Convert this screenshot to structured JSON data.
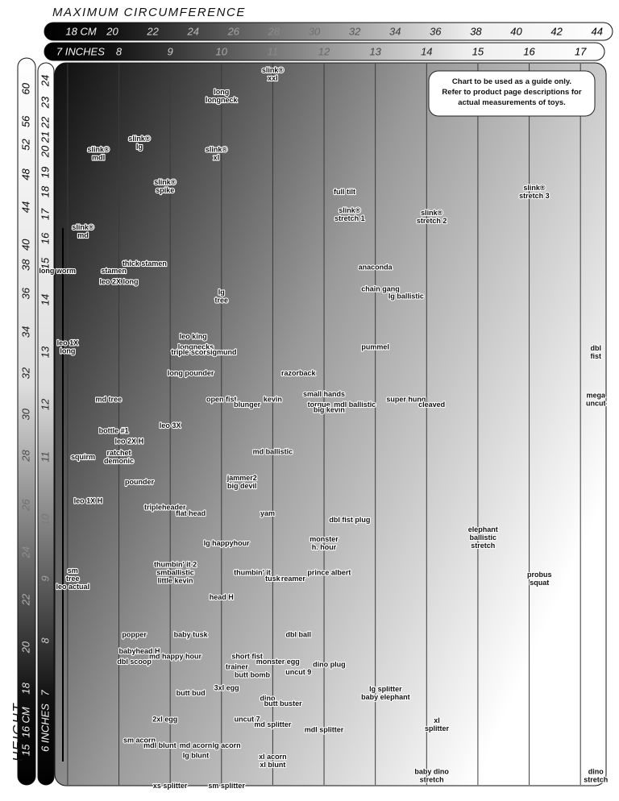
{
  "chart_data": {
    "type": "label-scatter",
    "title": "MAXIMUM CIRCUMFERENCE",
    "ylabel": "HEIGHT",
    "note": [
      "Chart to be used as a guide only.",
      "Refer to product page descriptions for",
      "actual measurements of toys."
    ],
    "xlim": [
      6.75,
      17.5
    ],
    "xticks": [
      {
        "value": 7,
        "label": "7 INCHES"
      },
      8,
      9,
      10,
      11,
      12,
      13,
      14,
      15,
      16,
      17
    ],
    "x2ticks": [
      {
        "value": 18,
        "label": "18 CM"
      },
      20,
      22,
      24,
      26,
      28,
      30,
      32,
      34,
      36,
      38,
      40,
      42,
      44
    ],
    "ylim": [
      5.2,
      24.8
    ],
    "yticks": [
      {
        "value": 6,
        "label": "6 INCHES"
      },
      7,
      8,
      9,
      10,
      11,
      12,
      13,
      14,
      15,
      16,
      17,
      18,
      19,
      20,
      21,
      22,
      23,
      24
    ],
    "y2ticks": [
      15,
      {
        "value": 16,
        "label": "16 CM"
      },
      18,
      20,
      22,
      24,
      26,
      28,
      30,
      32,
      34,
      36,
      38,
      40,
      44,
      48,
      52,
      56,
      60
    ],
    "grid": true,
    "points": [
      {
        "label": [
          "slink®",
          "xxl"
        ],
        "x": 11.0,
        "y": 24.3
      },
      {
        "label": [
          "long",
          "longneck"
        ],
        "x": 10.0,
        "y": 23.3
      },
      {
        "label": [
          "slink®",
          "lg"
        ],
        "x": 8.4,
        "y": 20.6
      },
      {
        "label": [
          "slink®",
          "mdl"
        ],
        "x": 7.6,
        "y": 19.9
      },
      {
        "label": [
          "slink®",
          "xl"
        ],
        "x": 9.9,
        "y": 19.9
      },
      {
        "label": [
          "slink®",
          "spike"
        ],
        "x": 8.9,
        "y": 18.3
      },
      {
        "label": [
          "full tilt"
        ],
        "x": 12.4,
        "y": 18.0
      },
      {
        "label": [
          "slink®",
          "stretch 1"
        ],
        "x": 12.5,
        "y": 17.0
      },
      {
        "label": [
          "slink®",
          "stretch 2"
        ],
        "x": 14.1,
        "y": 16.9
      },
      {
        "label": [
          "slink®",
          "stretch 3"
        ],
        "x": 16.1,
        "y": 18.0
      },
      {
        "label": [
          "slink®",
          "md"
        ],
        "x": 7.3,
        "y": 16.3
      },
      {
        "label": [
          "thick stamen"
        ],
        "x": 8.5,
        "y": 15.0
      },
      {
        "label": [
          "long worm"
        ],
        "x": 6.8,
        "y": 14.8
      },
      {
        "label": [
          "stamen"
        ],
        "x": 7.9,
        "y": 14.8
      },
      {
        "label": [
          "leo 2X long"
        ],
        "x": 8.0,
        "y": 14.5
      },
      {
        "label": [
          "anaconda"
        ],
        "x": 13.0,
        "y": 14.9
      },
      {
        "label": [
          "chain gang"
        ],
        "x": 13.1,
        "y": 14.3
      },
      {
        "label": [
          "lg ballistic"
        ],
        "x": 13.6,
        "y": 14.1
      },
      {
        "label": [
          "lg",
          "tree"
        ],
        "x": 10.0,
        "y": 14.1
      },
      {
        "label": [
          "leo 1X",
          "long"
        ],
        "x": 7.0,
        "y": 13.1
      },
      {
        "label": [
          "leo king"
        ],
        "x": 9.45,
        "y": 13.3
      },
      {
        "label": [
          "longnecks"
        ],
        "x": 9.5,
        "y": 13.1
      },
      {
        "label": [
          "triple score"
        ],
        "x": 9.4,
        "y": 13.0
      },
      {
        "label": [
          "sigmund"
        ],
        "x": 10.0,
        "y": 13.0
      },
      {
        "label": [
          "pummel"
        ],
        "x": 13.0,
        "y": 13.1
      },
      {
        "label": [
          "dbl",
          "fist"
        ],
        "x": 17.3,
        "y": 13.0
      },
      {
        "label": [
          "long pounder"
        ],
        "x": 9.4,
        "y": 12.6
      },
      {
        "label": [
          "razorback"
        ],
        "x": 11.5,
        "y": 12.6
      },
      {
        "label": [
          "md tree"
        ],
        "x": 7.8,
        "y": 12.1
      },
      {
        "label": [
          "open fist"
        ],
        "x": 10.0,
        "y": 12.1
      },
      {
        "label": [
          "blunger"
        ],
        "x": 10.5,
        "y": 12.0
      },
      {
        "label": [
          "kevin"
        ],
        "x": 11.0,
        "y": 12.1
      },
      {
        "label": [
          "small hands"
        ],
        "x": 12.0,
        "y": 12.2
      },
      {
        "label": [
          "torque"
        ],
        "x": 11.9,
        "y": 12.0
      },
      {
        "label": [
          "big kevin"
        ],
        "x": 12.1,
        "y": 11.9
      },
      {
        "label": [
          "mdl ballistic"
        ],
        "x": 12.6,
        "y": 12.0
      },
      {
        "label": [
          "super hung"
        ],
        "x": 13.6,
        "y": 12.1
      },
      {
        "label": [
          "cleaved"
        ],
        "x": 14.1,
        "y": 12.0
      },
      {
        "label": [
          "mega",
          "uncut"
        ],
        "x": 17.3,
        "y": 12.1
      },
      {
        "label": [
          "leo 3X"
        ],
        "x": 9.0,
        "y": 11.6
      },
      {
        "label": [
          "bottle #1"
        ],
        "x": 7.9,
        "y": 11.5
      },
      {
        "label": [
          "leo 2X H"
        ],
        "x": 8.2,
        "y": 11.3
      },
      {
        "label": [
          "md ballistic"
        ],
        "x": 11.0,
        "y": 11.1
      },
      {
        "label": [
          "squirm"
        ],
        "x": 7.3,
        "y": 11.0
      },
      {
        "label": [
          "ratchet",
          "demonic"
        ],
        "x": 8.0,
        "y": 11.0
      },
      {
        "label": [
          "pounder"
        ],
        "x": 8.4,
        "y": 10.6
      },
      {
        "label": [
          "jammer2",
          "big devil"
        ],
        "x": 10.4,
        "y": 10.6
      },
      {
        "label": [
          "leo 1X H"
        ],
        "x": 7.4,
        "y": 10.3
      },
      {
        "label": [
          "tripleheader"
        ],
        "x": 8.9,
        "y": 10.2
      },
      {
        "label": [
          "flat head"
        ],
        "x": 9.4,
        "y": 10.1
      },
      {
        "label": [
          "yam"
        ],
        "x": 10.9,
        "y": 10.1
      },
      {
        "label": [
          "dbl fist plug"
        ],
        "x": 12.5,
        "y": 10.0
      },
      {
        "label": [
          "elephant",
          "ballistic",
          "stretch"
        ],
        "x": 15.1,
        "y": 9.7
      },
      {
        "label": [
          "lg happyhour"
        ],
        "x": 10.1,
        "y": 9.6
      },
      {
        "label": [
          "monster",
          "h. hour"
        ],
        "x": 12.0,
        "y": 9.6
      },
      {
        "label": [
          "thumbin' it 2",
          "smballistic",
          "little kevin"
        ],
        "x": 9.1,
        "y": 9.1
      },
      {
        "label": [
          "thumbin' it"
        ],
        "x": 10.6,
        "y": 9.1
      },
      {
        "label": [
          "tusk"
        ],
        "x": 11.0,
        "y": 9.0
      },
      {
        "label": [
          "reamer"
        ],
        "x": 11.4,
        "y": 9.0
      },
      {
        "label": [
          "prince albert"
        ],
        "x": 12.1,
        "y": 9.1
      },
      {
        "label": [
          "sm",
          "tree",
          "leo actual"
        ],
        "x": 7.1,
        "y": 9.0
      },
      {
        "label": [
          "probus",
          "squat"
        ],
        "x": 16.2,
        "y": 9.0
      },
      {
        "label": [
          "head H"
        ],
        "x": 10.0,
        "y": 8.7
      },
      {
        "label": [
          "popper"
        ],
        "x": 8.3,
        "y": 8.1
      },
      {
        "label": [
          "baby tusk"
        ],
        "x": 9.4,
        "y": 8.1
      },
      {
        "label": [
          "dbl ball"
        ],
        "x": 11.5,
        "y": 8.1
      },
      {
        "label": [
          "babyhead H"
        ],
        "x": 8.4,
        "y": 7.8
      },
      {
        "label": [
          "md happy hour"
        ],
        "x": 9.1,
        "y": 7.7
      },
      {
        "label": [
          "short fist"
        ],
        "x": 10.5,
        "y": 7.7
      },
      {
        "label": [
          "monster egg"
        ],
        "x": 11.1,
        "y": 7.6
      },
      {
        "label": [
          "dbl scoop"
        ],
        "x": 8.3,
        "y": 7.6
      },
      {
        "label": [
          "trainer"
        ],
        "x": 10.3,
        "y": 7.5
      },
      {
        "label": [
          "dino plug"
        ],
        "x": 12.1,
        "y": 7.55
      },
      {
        "label": [
          "uncut 9"
        ],
        "x": 11.5,
        "y": 7.4
      },
      {
        "label": [
          "butt bomb"
        ],
        "x": 10.6,
        "y": 7.35
      },
      {
        "label": [
          "lg splitter",
          "baby elephant"
        ],
        "x": 13.2,
        "y": 7.0
      },
      {
        "label": [
          "3xl egg"
        ],
        "x": 10.1,
        "y": 7.1
      },
      {
        "label": [
          "butt bud"
        ],
        "x": 9.4,
        "y": 7.0
      },
      {
        "label": [
          "dino"
        ],
        "x": 10.9,
        "y": 6.9
      },
      {
        "label": [
          "butt buster"
        ],
        "x": 11.2,
        "y": 6.8
      },
      {
        "label": [
          "2xl egg"
        ],
        "x": 8.9,
        "y": 6.5
      },
      {
        "label": [
          "uncut 7"
        ],
        "x": 10.5,
        "y": 6.5
      },
      {
        "label": [
          "md splitter"
        ],
        "x": 11.0,
        "y": 6.4
      },
      {
        "label": [
          "mdl splitter"
        ],
        "x": 12.0,
        "y": 6.3
      },
      {
        "label": [
          "xl",
          "splitter"
        ],
        "x": 14.2,
        "y": 6.4
      },
      {
        "label": [
          "sm acorn"
        ],
        "x": 8.4,
        "y": 6.1
      },
      {
        "label": [
          "mdl blunt"
        ],
        "x": 8.8,
        "y": 6.0
      },
      {
        "label": [
          "md acorn"
        ],
        "x": 9.5,
        "y": 6.0
      },
      {
        "label": [
          "lg acorn"
        ],
        "x": 10.1,
        "y": 6.0
      },
      {
        "label": [
          "lg blunt"
        ],
        "x": 9.5,
        "y": 5.8
      },
      {
        "label": [
          "xl acorn",
          "xl blunt"
        ],
        "x": 11.0,
        "y": 5.7
      },
      {
        "label": [
          "baby dino",
          "stretch"
        ],
        "x": 14.1,
        "y": 5.4
      },
      {
        "label": [
          "dino",
          "stretch"
        ],
        "x": 17.3,
        "y": 5.4
      },
      {
        "label": [
          "xs splitter"
        ],
        "x": 9.0,
        "y": 5.2
      },
      {
        "label": [
          "sm splitter"
        ],
        "x": 10.1,
        "y": 5.2
      }
    ]
  }
}
